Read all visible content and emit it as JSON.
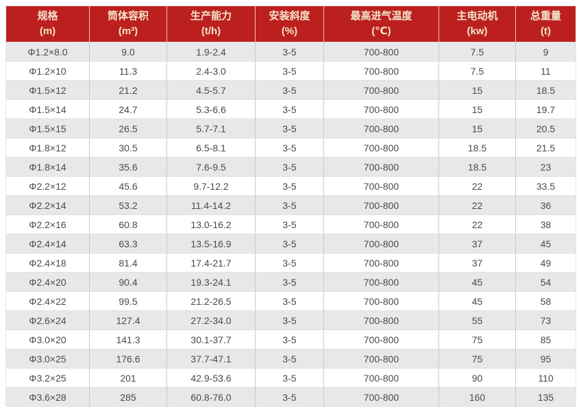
{
  "accent_color": "#bc201e",
  "header_text_color": "#f3e5cd",
  "row_stripe_color": "#e8e8e8",
  "chart_data": {
    "type": "table",
    "title": "",
    "columns": [
      {
        "title": "规格",
        "unit": "(m)"
      },
      {
        "title": "筒体容积",
        "unit": "(m³)"
      },
      {
        "title": "生产能力",
        "unit": "(t/h)"
      },
      {
        "title": "安装斜度",
        "unit": "(%)"
      },
      {
        "title": "最高进气温度",
        "unit": "(℃)"
      },
      {
        "title": "主电动机",
        "unit": "(kw)"
      },
      {
        "title": "总重量",
        "unit": "(t)"
      }
    ],
    "rows": [
      [
        "Φ1.2×8.0",
        "9.0",
        "1.9-2.4",
        "3-5",
        "700-800",
        "7.5",
        "9"
      ],
      [
        "Φ1.2×10",
        "11.3",
        "2.4-3.0",
        "3-5",
        "700-800",
        "7.5",
        "11"
      ],
      [
        "Φ1.5×12",
        "21.2",
        "4.5-5.7",
        "3-5",
        "700-800",
        "15",
        "18.5"
      ],
      [
        "Φ1.5×14",
        "24.7",
        "5.3-6.6",
        "3-5",
        "700-800",
        "15",
        "19.7"
      ],
      [
        "Φ1.5×15",
        "26.5",
        "5.7-7.1",
        "3-5",
        "700-800",
        "15",
        "20.5"
      ],
      [
        "Φ1.8×12",
        "30.5",
        "6.5-8.1",
        "3-5",
        "700-800",
        "18.5",
        "21.5"
      ],
      [
        "Φ1.8×14",
        "35.6",
        "7.6-9.5",
        "3-5",
        "700-800",
        "18.5",
        "23"
      ],
      [
        "Φ2.2×12",
        "45.6",
        "9.7-12.2",
        "3-5",
        "700-800",
        "22",
        "33.5"
      ],
      [
        "Φ2.2×14",
        "53.2",
        "11.4-14.2",
        "3-5",
        "700-800",
        "22",
        "36"
      ],
      [
        "Φ2.2×16",
        "60.8",
        "13.0-16.2",
        "3-5",
        "700-800",
        "22",
        "38"
      ],
      [
        "Φ2.4×14",
        "63.3",
        "13.5-16.9",
        "3-5",
        "700-800",
        "37",
        "45"
      ],
      [
        "Φ2.4×18",
        "81.4",
        "17.4-21.7",
        "3-5",
        "700-800",
        "37",
        "49"
      ],
      [
        "Φ2.4×20",
        "90.4",
        "19.3-24.1",
        "3-5",
        "700-800",
        "45",
        "54"
      ],
      [
        "Φ2.4×22",
        "99.5",
        "21.2-26.5",
        "3-5",
        "700-800",
        "45",
        "58"
      ],
      [
        "Φ2.6×24",
        "127.4",
        "27.2-34.0",
        "3-5",
        "700-800",
        "55",
        "73"
      ],
      [
        "Φ3.0×20",
        "141.3",
        "30.1-37.7",
        "3-5",
        "700-800",
        "75",
        "85"
      ],
      [
        "Φ3.0×25",
        "176.6",
        "37.7-47.1",
        "3-5",
        "700-800",
        "75",
        "95"
      ],
      [
        "Φ3.2×25",
        "201",
        "42.9-53.6",
        "3-5",
        "700-800",
        "90",
        "110"
      ],
      [
        "Φ3.6×28",
        "285",
        "60.8-76.0",
        "3-5",
        "700-800",
        "160",
        "135"
      ]
    ]
  }
}
